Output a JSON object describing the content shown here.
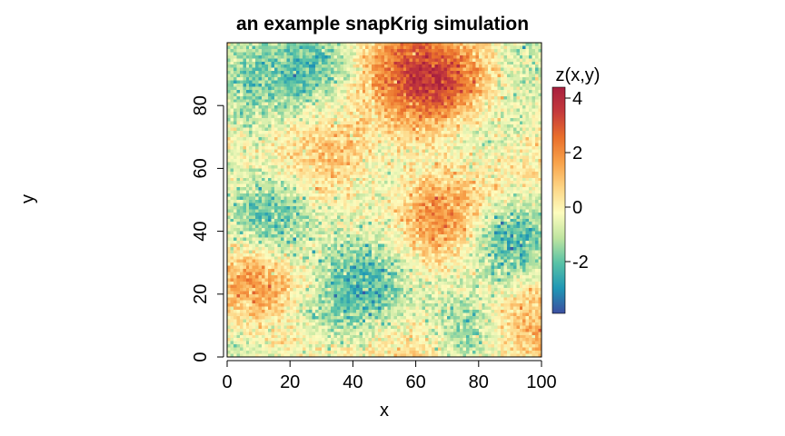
{
  "chart_data": {
    "type": "heatmap",
    "title": "an example snapKrig simulation",
    "xlabel": "x",
    "ylabel": "y",
    "xlim": [
      0,
      100
    ],
    "ylim": [
      0,
      100
    ],
    "x_ticks": [
      0,
      20,
      40,
      60,
      80,
      100
    ],
    "y_ticks": [
      0,
      20,
      40,
      60,
      80
    ],
    "grid": false,
    "grid_resolution": [
      100,
      100
    ],
    "legend": {
      "title": "z(x,y)",
      "placement": "right",
      "range": [
        -3.9,
        4.4
      ],
      "ticks": [
        -2,
        0,
        2,
        4
      ],
      "palette": [
        "#3c4ea0",
        "#1f97b5",
        "#58c2a6",
        "#bfe5a0",
        "#fdfcbe",
        "#fdd585",
        "#f8a24a",
        "#e96f2b",
        "#c53a3c",
        "#a8203f"
      ]
    },
    "features": [
      {
        "kind": "high",
        "x": 70,
        "y": 86,
        "value": 3.2
      },
      {
        "kind": "high",
        "x": 55,
        "y": 92,
        "value": 2.0
      },
      {
        "kind": "high",
        "x": 68,
        "y": 45,
        "value": 2.4
      },
      {
        "kind": "high",
        "x": 10,
        "y": 22,
        "value": 2.6
      },
      {
        "kind": "high",
        "x": 32,
        "y": 63,
        "value": 1.3
      },
      {
        "kind": "high",
        "x": 95,
        "y": 12,
        "value": 1.5
      },
      {
        "kind": "high",
        "x": 60,
        "y": 2,
        "value": 1.3
      },
      {
        "kind": "high",
        "x": 25,
        "y": 2,
        "value": 1.1
      },
      {
        "kind": "high",
        "x": 90,
        "y": 60,
        "value": 1.0
      },
      {
        "kind": "low",
        "x": 90,
        "y": 38,
        "value": -2.7
      },
      {
        "kind": "low",
        "x": 45,
        "y": 22,
        "value": -2.3
      },
      {
        "kind": "low",
        "x": 14,
        "y": 43,
        "value": -2.3
      },
      {
        "kind": "low",
        "x": 28,
        "y": 93,
        "value": -2.0
      },
      {
        "kind": "low",
        "x": 80,
        "y": 72,
        "value": -1.8
      },
      {
        "kind": "low",
        "x": 75,
        "y": 8,
        "value": -1.9
      },
      {
        "kind": "low",
        "x": 25,
        "y": 10,
        "value": -1.6
      },
      {
        "kind": "low",
        "x": 6,
        "y": 88,
        "value": -1.4
      },
      {
        "kind": "low",
        "x": 2,
        "y": 5,
        "value": -1.2
      },
      {
        "kind": "low",
        "x": 50,
        "y": 55,
        "value": -1.0
      },
      {
        "kind": "low",
        "x": 95,
        "y": 95,
        "value": -1.0
      }
    ]
  }
}
